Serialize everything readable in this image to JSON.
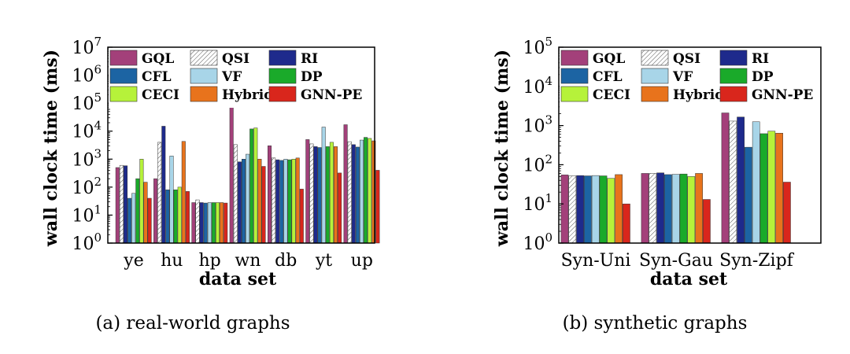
{
  "colors": {
    "GQL": "#a3407a",
    "QSI": "#ffffff",
    "RI": "#1e2a8c",
    "CFL": "#1c64a3",
    "VF": "#a8d5e8",
    "DP": "#1aaa2a",
    "CECI": "#b6f23a",
    "Hybrid": "#e8731c",
    "GNN-PE": "#d9261c"
  },
  "chart_data": [
    {
      "type": "bar",
      "scale": "log",
      "caption": "(a)  real-world graphs",
      "xlabel": "data set",
      "ylabel": "wall clock time (ms)",
      "ylim": [
        1,
        10000000
      ],
      "yticks": [
        {
          "base": "10",
          "exp": "0"
        },
        {
          "base": "10",
          "exp": "1"
        },
        {
          "base": "10",
          "exp": "2"
        },
        {
          "base": "10",
          "exp": "3"
        },
        {
          "base": "10",
          "exp": "4"
        },
        {
          "base": "10",
          "exp": "5"
        },
        {
          "base": "10",
          "exp": "6"
        },
        {
          "base": "10",
          "exp": "7"
        }
      ],
      "categories": [
        "ye",
        "hu",
        "hp",
        "wn",
        "db",
        "yt",
        "up"
      ],
      "series": [
        {
          "name": "GQL",
          "values": [
            500,
            200,
            28,
            100000,
            3000,
            5000,
            17000
          ]
        },
        {
          "name": "QSI",
          "values": [
            600,
            4000,
            35,
            3300,
            1100,
            3500,
            4200
          ]
        },
        {
          "name": "RI",
          "values": [
            580,
            15000,
            28,
            800,
            950,
            2800,
            3300
          ]
        },
        {
          "name": "CFL",
          "values": [
            40,
            80,
            27,
            1000,
            900,
            2600,
            2700
          ]
        },
        {
          "name": "VF",
          "values": [
            60,
            1300,
            28,
            1500,
            1000,
            14000,
            4800
          ]
        },
        {
          "name": "DP",
          "values": [
            200,
            80,
            28,
            12000,
            950,
            2800,
            6000
          ]
        },
        {
          "name": "CECI",
          "values": [
            1000,
            100,
            28,
            13000,
            1000,
            4000,
            5500
          ]
        },
        {
          "name": "Hybrid",
          "values": [
            150,
            4300,
            28,
            1000,
            1100,
            2800,
            4500
          ]
        },
        {
          "name": "GNN-PE",
          "values": [
            40,
            70,
            27,
            550,
            85,
            320,
            400
          ]
        }
      ],
      "legend": [
        "GQL",
        "QSI",
        "RI",
        "CFL",
        "VF",
        "DP",
        "CECI",
        "Hybrid",
        "GNN-PE"
      ]
    },
    {
      "type": "bar",
      "scale": "log",
      "caption": "(b)  synthetic graphs",
      "xlabel": "data set",
      "ylabel": "wall clock time (ms)",
      "ylim": [
        1,
        100000
      ],
      "yticks": [
        {
          "base": "10",
          "exp": "0"
        },
        {
          "base": "10",
          "exp": "1"
        },
        {
          "base": "10",
          "exp": "2"
        },
        {
          "base": "10",
          "exp": "3"
        },
        {
          "base": "10",
          "exp": "4"
        },
        {
          "base": "10",
          "exp": "5"
        }
      ],
      "categories": [
        "Syn-Uni",
        "Syn-Gau",
        "Syn-Zipf"
      ],
      "series": [
        {
          "name": "GQL",
          "values": [
            55,
            60,
            2100
          ]
        },
        {
          "name": "QSI",
          "values": [
            52,
            60,
            1300
          ]
        },
        {
          "name": "RI",
          "values": [
            53,
            62,
            1650
          ]
        },
        {
          "name": "CFL",
          "values": [
            52,
            56,
            280
          ]
        },
        {
          "name": "VF",
          "values": [
            53,
            57,
            1250
          ]
        },
        {
          "name": "DP",
          "values": [
            52,
            58,
            620
          ]
        },
        {
          "name": "CECI",
          "values": [
            45,
            50,
            720
          ]
        },
        {
          "name": "Hybrid",
          "values": [
            56,
            60,
            640
          ]
        },
        {
          "name": "GNN-PE",
          "values": [
            10,
            13,
            36
          ]
        }
      ],
      "legend": [
        "GQL",
        "QSI",
        "RI",
        "CFL",
        "VF",
        "DP",
        "CECI",
        "Hybrid",
        "GNN-PE"
      ]
    }
  ]
}
